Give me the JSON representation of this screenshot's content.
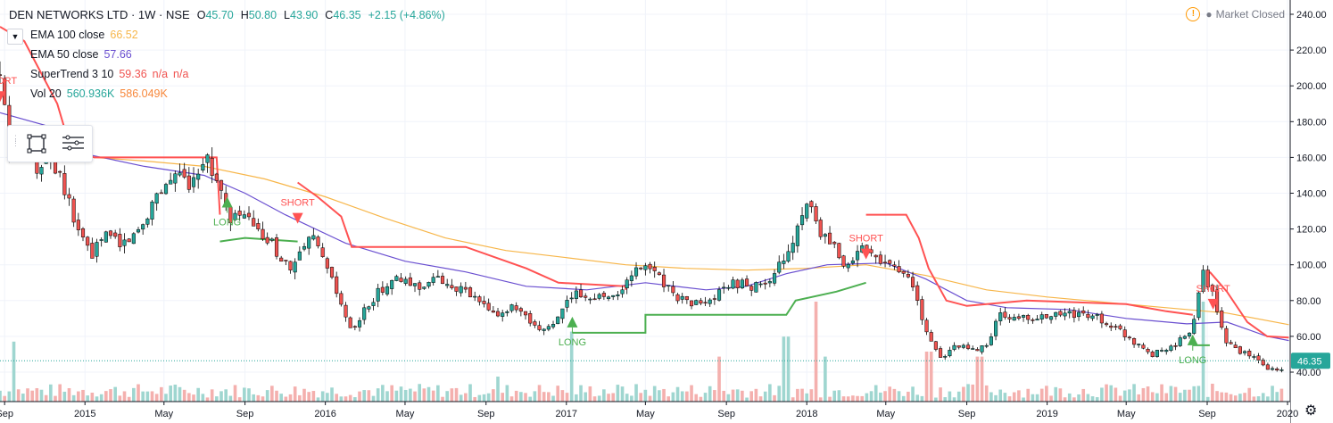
{
  "header": {
    "symbol": "DEN NETWORKS LTD · 1W · NSE",
    "open_label": "O",
    "open": "45.70",
    "high_label": "H",
    "high": "50.80",
    "low_label": "L",
    "low": "43.90",
    "close_label": "C",
    "close": "46.35",
    "change": "+2.15 (+4.86%)",
    "collapse_icon": "chevron-down-icon"
  },
  "indicators": [
    {
      "name": "EMA 100 close",
      "values": [
        "66.52"
      ],
      "color": "#f7b64a"
    },
    {
      "name": "EMA 50 close",
      "values": [
        "57.66"
      ],
      "color": "#6a4fd0"
    },
    {
      "name": "SuperTrend 3 10",
      "values": [
        "59.36",
        "n/a",
        "n/a"
      ],
      "color": "#f05350"
    },
    {
      "name": "Vol 20",
      "values": [
        "560.936K",
        "586.049K"
      ],
      "colors": [
        "#26a69a",
        "#f7873a"
      ]
    }
  ],
  "market_status": "Market Closed",
  "colors": {
    "up": "#26a69a",
    "down": "#ef5350",
    "ema100": "#f7b64a",
    "ema50": "#6a4fd0",
    "supertrend_down": "#ff5252",
    "supertrend_up": "#4caf50",
    "vol_up": "#9fd6d0",
    "vol_down": "#f4b0ae",
    "price_tag": "#26a69a"
  },
  "chart_data": {
    "type": "candlestick",
    "title": "DEN NETWORKS LTD · 1W · NSE",
    "y_axis": {
      "range": [
        30,
        245
      ],
      "ticks": [
        40,
        60,
        80,
        100,
        120,
        140,
        160,
        180,
        200,
        220,
        240
      ],
      "tick_labels": [
        "40.00",
        "60.00",
        "80.00",
        "100.00",
        "120.00",
        "140.00",
        "160.00",
        "180.00",
        "200.00",
        "220.00",
        "240.00"
      ]
    },
    "x_axis": {
      "start": "2014-08-25",
      "end": "2020-01-05",
      "ticks": [
        {
          "date": "2014-09-01",
          "label": "Sep"
        },
        {
          "date": "2015-01-01",
          "label": "2015"
        },
        {
          "date": "2015-05-01",
          "label": "May"
        },
        {
          "date": "2015-09-01",
          "label": "Sep"
        },
        {
          "date": "2016-01-01",
          "label": "2016"
        },
        {
          "date": "2016-05-01",
          "label": "May"
        },
        {
          "date": "2016-09-01",
          "label": "Sep"
        },
        {
          "date": "2017-01-01",
          "label": "2017"
        },
        {
          "date": "2017-05-01",
          "label": "May"
        },
        {
          "date": "2017-09-01",
          "label": "Sep"
        },
        {
          "date": "2018-01-01",
          "label": "2018"
        },
        {
          "date": "2018-05-01",
          "label": "May"
        },
        {
          "date": "2018-09-01",
          "label": "Sep"
        },
        {
          "date": "2019-01-01",
          "label": "2019"
        },
        {
          "date": "2019-05-01",
          "label": "May"
        },
        {
          "date": "2019-09-01",
          "label": "Sep"
        },
        {
          "date": "2020-01-01",
          "label": "2020"
        }
      ]
    },
    "last_price": {
      "value": 46.35,
      "label": "46.35"
    },
    "price_path": [
      [
        "2014-08-25",
        205
      ],
      [
        "2014-09-08",
        165
      ],
      [
        "2014-10-01",
        178
      ],
      [
        "2014-10-20",
        150
      ],
      [
        "2014-11-05",
        165
      ],
      [
        "2014-11-25",
        150
      ],
      [
        "2014-12-15",
        125
      ],
      [
        "2015-01-10",
        105
      ],
      [
        "2015-02-05",
        118
      ],
      [
        "2015-03-01",
        112
      ],
      [
        "2015-03-25",
        120
      ],
      [
        "2015-04-20",
        140
      ],
      [
        "2015-05-15",
        150
      ],
      [
        "2015-06-10",
        146
      ],
      [
        "2015-07-01",
        162
      ],
      [
        "2015-07-20",
        148
      ],
      [
        "2015-08-10",
        122
      ],
      [
        "2015-08-25",
        130
      ],
      [
        "2015-09-20",
        118
      ],
      [
        "2015-10-15",
        110
      ],
      [
        "2015-11-10",
        96
      ],
      [
        "2015-12-10",
        116
      ],
      [
        "2016-01-01",
        100
      ],
      [
        "2016-02-10",
        62
      ],
      [
        "2016-03-10",
        80
      ],
      [
        "2016-04-10",
        92
      ],
      [
        "2016-05-20",
        88
      ],
      [
        "2016-06-15",
        92
      ],
      [
        "2016-07-15",
        88
      ],
      [
        "2016-08-20",
        80
      ],
      [
        "2016-09-10",
        72
      ],
      [
        "2016-10-15",
        76
      ],
      [
        "2016-11-20",
        62
      ],
      [
        "2016-12-20",
        70
      ],
      [
        "2017-01-10",
        84
      ],
      [
        "2017-02-20",
        82
      ],
      [
        "2017-03-20",
        84
      ],
      [
        "2017-04-20",
        98
      ],
      [
        "2017-05-15",
        98
      ],
      [
        "2017-06-10",
        84
      ],
      [
        "2017-07-10",
        78
      ],
      [
        "2017-08-10",
        80
      ],
      [
        "2017-09-10",
        90
      ],
      [
        "2017-10-10",
        88
      ],
      [
        "2017-11-10",
        90
      ],
      [
        "2017-12-01",
        108
      ],
      [
        "2017-12-20",
        120
      ],
      [
        "2018-01-05",
        135
      ],
      [
        "2018-01-20",
        116
      ],
      [
        "2018-02-10",
        110
      ],
      [
        "2018-03-01",
        95
      ],
      [
        "2018-03-20",
        110
      ],
      [
        "2018-04-15",
        105
      ],
      [
        "2018-05-10",
        100
      ],
      [
        "2018-06-10",
        90
      ],
      [
        "2018-07-05",
        58
      ],
      [
        "2018-07-25",
        48
      ],
      [
        "2018-08-15",
        55
      ],
      [
        "2018-09-10",
        52
      ],
      [
        "2018-10-01",
        55
      ],
      [
        "2018-10-20",
        72
      ],
      [
        "2018-11-20",
        70
      ],
      [
        "2018-12-20",
        70
      ],
      [
        "2019-01-20",
        72
      ],
      [
        "2019-02-15",
        72
      ],
      [
        "2019-03-10",
        72
      ],
      [
        "2019-04-10",
        66
      ],
      [
        "2019-05-10",
        58
      ],
      [
        "2019-06-10",
        50
      ],
      [
        "2019-07-15",
        55
      ],
      [
        "2019-08-10",
        65
      ],
      [
        "2019-08-25",
        95
      ],
      [
        "2019-09-10",
        85
      ],
      [
        "2019-09-25",
        60
      ],
      [
        "2019-10-15",
        52
      ],
      [
        "2019-11-10",
        48
      ],
      [
        "2019-12-01",
        42
      ],
      [
        "2019-12-20",
        40
      ],
      [
        "2020-01-03",
        46.35
      ]
    ],
    "series": [
      {
        "name": "EMA 100 close",
        "color": "#f7b64a",
        "points": [
          [
            "2014-12-15",
            165
          ],
          [
            "2015-01-15",
            160
          ],
          [
            "2015-04-01",
            158
          ],
          [
            "2015-07-01",
            155
          ],
          [
            "2015-10-01",
            148
          ],
          [
            "2016-01-01",
            138
          ],
          [
            "2016-04-01",
            126
          ],
          [
            "2016-07-01",
            115
          ],
          [
            "2016-10-01",
            108
          ],
          [
            "2017-01-01",
            104
          ],
          [
            "2017-04-01",
            100
          ],
          [
            "2017-07-01",
            98
          ],
          [
            "2017-10-01",
            97
          ],
          [
            "2018-01-01",
            98
          ],
          [
            "2018-04-01",
            100
          ],
          [
            "2018-07-01",
            94
          ],
          [
            "2018-10-01",
            86
          ],
          [
            "2019-01-01",
            82
          ],
          [
            "2019-04-01",
            79
          ],
          [
            "2019-07-01",
            76
          ],
          [
            "2019-10-01",
            73
          ],
          [
            "2020-01-03",
            66.52
          ]
        ]
      },
      {
        "name": "EMA 50 close",
        "color": "#6a4fd0",
        "points": [
          [
            "2014-08-25",
            185
          ],
          [
            "2014-11-01",
            178
          ],
          [
            "2015-01-01",
            162
          ],
          [
            "2015-04-01",
            155
          ],
          [
            "2015-07-01",
            150
          ],
          [
            "2015-09-01",
            140
          ],
          [
            "2015-11-01",
            128
          ],
          [
            "2016-02-01",
            112
          ],
          [
            "2016-05-01",
            102
          ],
          [
            "2016-08-01",
            96
          ],
          [
            "2016-11-01",
            88
          ],
          [
            "2017-02-01",
            86
          ],
          [
            "2017-05-01",
            90
          ],
          [
            "2017-08-01",
            86
          ],
          [
            "2017-10-01",
            88
          ],
          [
            "2017-12-01",
            95
          ],
          [
            "2018-02-01",
            100
          ],
          [
            "2018-05-01",
            101
          ],
          [
            "2018-07-01",
            92
          ],
          [
            "2018-09-01",
            80
          ],
          [
            "2018-11-01",
            76
          ],
          [
            "2019-02-01",
            75
          ],
          [
            "2019-05-01",
            70
          ],
          [
            "2019-08-01",
            67
          ],
          [
            "2019-10-01",
            68
          ],
          [
            "2019-12-01",
            60
          ],
          [
            "2020-01-03",
            57.66
          ]
        ]
      },
      {
        "name": "SuperTrend 3 10",
        "segments": [
          {
            "dir": "down",
            "points": [
              [
                "2014-08-25",
                233
              ],
              [
                "2014-10-01",
                225
              ],
              [
                "2014-11-20",
                190
              ],
              [
                "2014-12-10",
                165
              ],
              [
                "2015-01-15",
                160
              ],
              [
                "2015-04-01",
                160
              ],
              [
                "2015-07-20",
                160
              ],
              [
                "2015-07-25",
                128
              ]
            ]
          },
          {
            "dir": "up",
            "points": [
              [
                "2015-07-25",
                113
              ],
              [
                "2015-09-01",
                115
              ],
              [
                "2015-11-20",
                113
              ]
            ]
          },
          {
            "dir": "down",
            "points": [
              [
                "2015-11-20",
                146
              ],
              [
                "2015-12-20",
                138
              ],
              [
                "2016-01-25",
                127
              ],
              [
                "2016-02-10",
                110
              ],
              [
                "2016-06-01",
                110
              ],
              [
                "2016-08-01",
                110
              ],
              [
                "2016-11-01",
                98
              ],
              [
                "2016-12-20",
                90
              ],
              [
                "2017-04-01",
                88
              ],
              [
                "2017-04-01",
                86
              ]
            ]
          },
          {
            "dir": "up",
            "points": [
              [
                "2017-01-10",
                62
              ],
              [
                "2017-05-01",
                62
              ],
              [
                "2017-05-01",
                72
              ],
              [
                "2017-12-01",
                72
              ],
              [
                "2017-12-15",
                80
              ],
              [
                "2018-02-15",
                85
              ],
              [
                "2018-04-01",
                90
              ]
            ]
          },
          {
            "dir": "down",
            "points": [
              [
                "2018-04-01",
                128
              ],
              [
                "2018-06-01",
                128
              ],
              [
                "2018-06-20",
                115
              ],
              [
                "2018-07-05",
                98
              ],
              [
                "2018-08-01",
                80
              ],
              [
                "2018-09-01",
                77
              ],
              [
                "2018-12-01",
                80
              ],
              [
                "2019-05-01",
                78
              ],
              [
                "2019-07-01",
                74
              ],
              [
                "2019-08-10",
                72
              ]
            ]
          },
          {
            "dir": "up",
            "points": [
              [
                "2019-08-10",
                55
              ],
              [
                "2019-09-05",
                55
              ]
            ]
          },
          {
            "dir": "down",
            "points": [
              [
                "2019-09-05",
                96
              ],
              [
                "2019-10-01",
                85
              ],
              [
                "2019-11-01",
                68
              ],
              [
                "2019-12-01",
                60
              ],
              [
                "2020-01-03",
                59.36
              ]
            ]
          }
        ]
      }
    ],
    "signals": [
      {
        "type": "SHORT",
        "date": "2014-08-25",
        "price": 193
      },
      {
        "type": "LONG",
        "date": "2015-08-05",
        "price": 135
      },
      {
        "type": "SHORT",
        "date": "2015-11-20",
        "price": 125
      },
      {
        "type": "LONG",
        "date": "2017-01-10",
        "price": 68
      },
      {
        "type": "SHORT",
        "date": "2018-04-01",
        "price": 105
      },
      {
        "type": "LONG",
        "date": "2019-08-10",
        "price": 58
      },
      {
        "type": "SHORT",
        "date": "2019-09-10",
        "price": 77
      }
    ],
    "volume_spikes": [
      {
        "date": "2014-09-15",
        "value": 0.6,
        "dir": "up"
      },
      {
        "date": "2016-09-20",
        "value": 0.25,
        "dir": "up"
      },
      {
        "date": "2017-01-10",
        "value": 0.7,
        "dir": "up"
      },
      {
        "date": "2017-08-20",
        "value": 0.45,
        "dir": "down"
      },
      {
        "date": "2017-12-01",
        "value": 0.65,
        "dir": "up"
      },
      {
        "date": "2018-01-15",
        "value": 1.0,
        "dir": "down"
      },
      {
        "date": "2018-01-30",
        "value": 0.45,
        "dir": "up"
      },
      {
        "date": "2018-07-05",
        "value": 0.5,
        "dir": "down"
      },
      {
        "date": "2018-09-20",
        "value": 0.45,
        "dir": "down"
      },
      {
        "date": "2019-08-25",
        "value": 1.0,
        "dir": "up"
      }
    ]
  }
}
